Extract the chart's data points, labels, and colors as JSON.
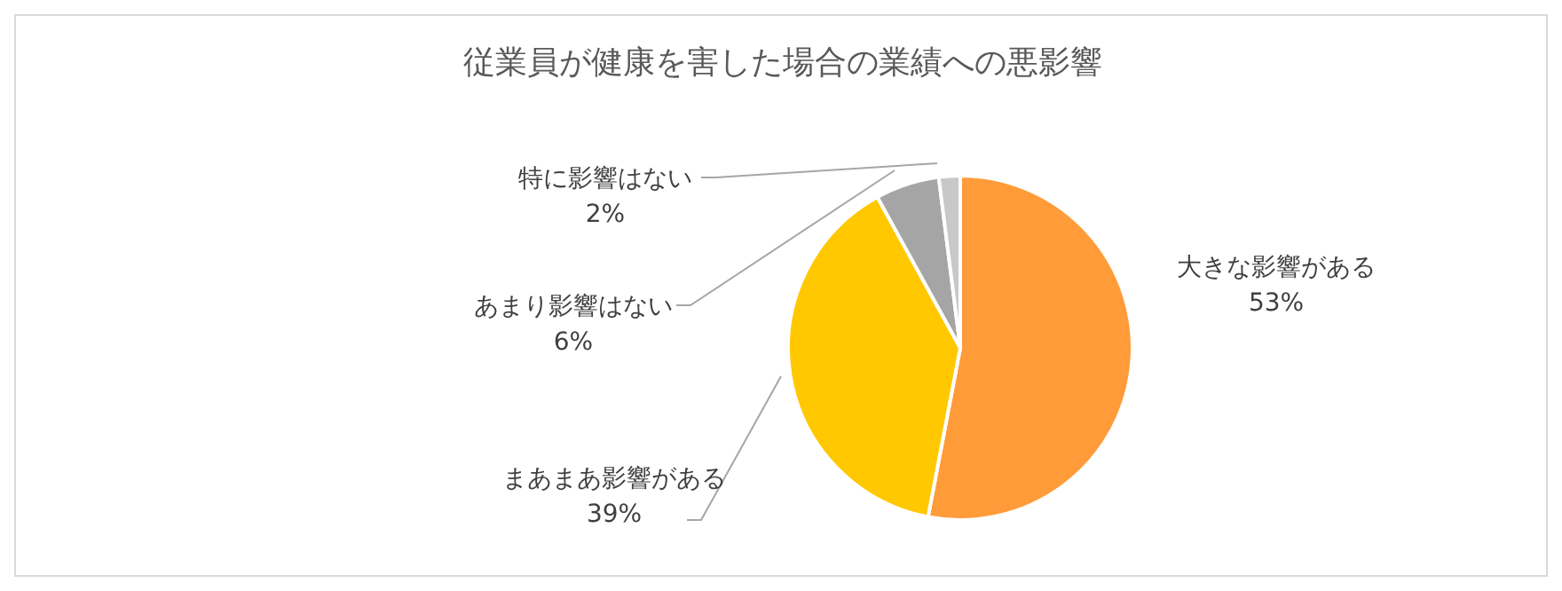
{
  "chart_data": {
    "type": "pie",
    "title": "従業員が健康を害した場合の業績への悪影響",
    "categories": [
      "大きな影響がある",
      "まあまあ影響がある",
      "あまり影響はない",
      "特に影響はない"
    ],
    "values": [
      53,
      39,
      6,
      2
    ],
    "value_labels": [
      "53%",
      "39%",
      "6%",
      "2%"
    ],
    "colors": [
      "#ff9b38",
      "#ffc800",
      "#a5a5a5",
      "#c8c8c8"
    ],
    "legend": false
  }
}
